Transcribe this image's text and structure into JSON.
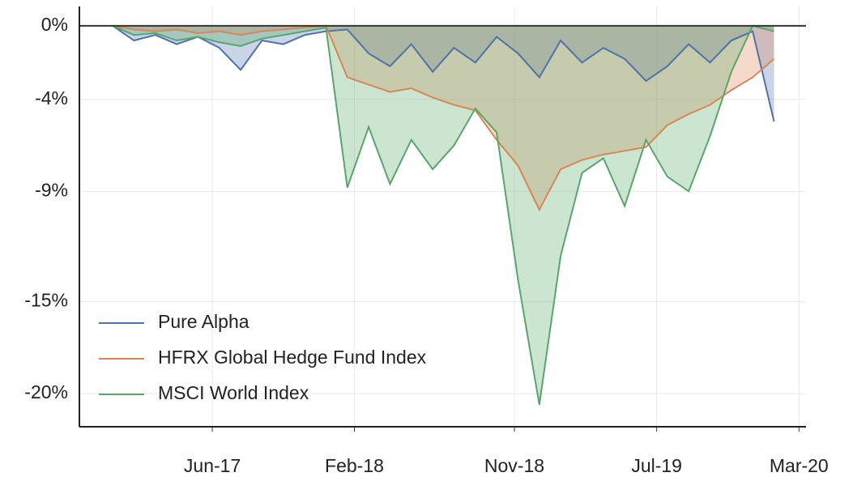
{
  "chart_data": {
    "type": "area-line",
    "x": [
      2016.95,
      2017.05,
      2017.15,
      2017.25,
      2017.35,
      2017.45,
      2017.55,
      2017.65,
      2017.75,
      2017.85,
      2017.95,
      2018.05,
      2018.15,
      2018.25,
      2018.35,
      2018.45,
      2018.55,
      2018.65,
      2018.75,
      2018.85,
      2018.95,
      2019.05,
      2019.15,
      2019.25,
      2019.35,
      2019.45,
      2019.55,
      2019.65,
      2019.75,
      2019.85,
      2019.95,
      2020.05
    ],
    "series": [
      {
        "name": "Pure Alpha",
        "color": "#4c72b0",
        "values": [
          0,
          -0.8,
          -0.5,
          -1.0,
          -0.6,
          -1.2,
          -2.4,
          -0.8,
          -1.0,
          -0.5,
          -0.3,
          -0.2,
          -1.5,
          -2.2,
          -1.0,
          -2.5,
          -1.2,
          -2.0,
          -0.6,
          -1.5,
          -2.8,
          -0.8,
          -2.0,
          -1.2,
          -1.8,
          -3.0,
          -2.2,
          -1.0,
          -2.0,
          -0.8,
          -0.3,
          -5.2
        ]
      },
      {
        "name": "HFRX Global Hedge Fund Index",
        "color": "#dd8452",
        "values": [
          0,
          -0.2,
          -0.3,
          -0.2,
          -0.4,
          -0.3,
          -0.5,
          -0.3,
          -0.2,
          -0.1,
          0,
          -2.8,
          -3.2,
          -3.6,
          -3.4,
          -3.9,
          -4.3,
          -4.6,
          -6.2,
          -7.6,
          -10.0,
          -7.8,
          -7.3,
          -7.0,
          -6.8,
          -6.6,
          -5.4,
          -4.8,
          -4.3,
          -3.5,
          -2.8,
          -1.8
        ]
      },
      {
        "name": "MSCI World Index",
        "color": "#55a868",
        "values": [
          0,
          -0.5,
          -0.4,
          -0.8,
          -0.6,
          -0.9,
          -1.1,
          -0.7,
          -0.5,
          -0.3,
          -0.1,
          -8.8,
          -5.5,
          -8.6,
          -6.2,
          -7.8,
          -6.5,
          -4.5,
          -5.8,
          -13.8,
          -20.6,
          -12.5,
          -8.0,
          -7.2,
          -9.8,
          -6.2,
          -8.2,
          -9.0,
          -6.0,
          -2.5,
          0,
          -0.3
        ]
      }
    ],
    "xlim": [
      2016.794,
      2020.2
    ],
    "xticks": [
      {
        "value": 2017.417,
        "label": "Jun-17"
      },
      {
        "value": 2018.083,
        "label": "Feb-18"
      },
      {
        "value": 2018.833,
        "label": "Nov-18"
      },
      {
        "value": 2019.5,
        "label": "Jul-19"
      },
      {
        "value": 2020.167,
        "label": "Mar-20"
      }
    ],
    "ylim": [
      -21.8,
      1.05
    ],
    "yticks": [
      {
        "value": 0,
        "label": "0%"
      },
      {
        "value": -4,
        "label": "-4%"
      },
      {
        "value": -9,
        "label": "-9%"
      },
      {
        "value": -15,
        "label": "-15%"
      },
      {
        "value": -20,
        "label": "-20%"
      }
    ],
    "grid": true,
    "legend": "lower left"
  }
}
